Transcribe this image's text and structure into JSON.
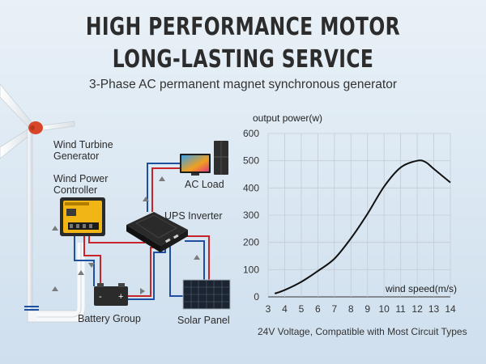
{
  "header": {
    "line1": "HIGH PERFORMANCE MOTOR",
    "line2": "LONG-LASTING SERVICE",
    "subtitle": "3-Phase AC permanent magnet synchronous generator"
  },
  "diagram": {
    "wind_turbine_label": [
      "Wind Turbine",
      "Generator"
    ],
    "controller_label": [
      "Wind Power",
      "Controller"
    ],
    "ac_load_label": "AC Load",
    "inverter_label": "UPS Inverter",
    "battery_label": "Battery Group",
    "solar_label": "Solar Panel",
    "battery_minus": "-",
    "battery_plus": "+",
    "colors": {
      "positive_wire": "#c8252b",
      "negative_wire": "#1e4fa0",
      "arrow": "#7a7a7a"
    }
  },
  "chart_data": {
    "type": "line",
    "ylabel": "output power(w)",
    "xlabel": "wind speed(m/s)",
    "xlim": [
      3,
      14
    ],
    "ylim": [
      0,
      600
    ],
    "xticks": [
      3,
      4,
      5,
      6,
      7,
      8,
      9,
      10,
      11,
      12,
      13,
      14
    ],
    "yticks": [
      0,
      100,
      200,
      300,
      400,
      500,
      600
    ],
    "grid": true,
    "line_color": "#111111",
    "series": [
      {
        "x": [
          3.4,
          4,
          5,
          6,
          7,
          8,
          9,
          10,
          11,
          12,
          12.5,
          13,
          14
        ],
        "y": [
          12,
          25,
          55,
          95,
          140,
          215,
          305,
          405,
          475,
          500,
          495,
          470,
          420
        ]
      }
    ]
  },
  "footer": "24V Voltage, Compatible with Most Circuit Types"
}
